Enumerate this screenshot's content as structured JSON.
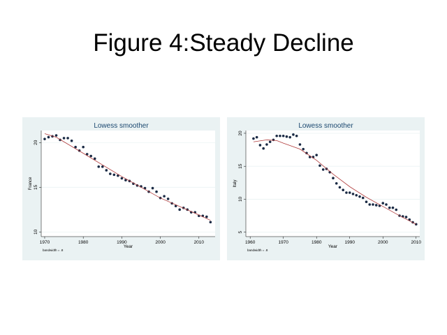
{
  "slide_title": "Figure 4:Steady Decline",
  "chart_data": [
    {
      "type": "scatter",
      "title": "Lowess smoother",
      "xlabel": "Year",
      "ylabel": "France",
      "note": "bandwidth = .8",
      "xlim": [
        1969.1,
        2014.2
      ],
      "ylim": [
        9.48,
        21.35
      ],
      "xticks": [
        1970,
        1980,
        1990,
        2000,
        2010
      ],
      "yticks": [
        10,
        15,
        20
      ],
      "grid": true,
      "marker_color": "#1a2a44",
      "line_color": "#b03a3a",
      "x": [
        1970,
        1971,
        1972,
        1973,
        1974,
        1975,
        1976,
        1977,
        1978,
        1979,
        1980,
        1981,
        1982,
        1983,
        1984,
        1985,
        1986,
        1987,
        1988,
        1989,
        1990,
        1991,
        1992,
        1993,
        1994,
        1995,
        1996,
        1997,
        1998,
        1999,
        2000,
        2001,
        2002,
        2003,
        2004,
        2005,
        2006,
        2007,
        2008,
        2009,
        2010,
        2011,
        2012,
        2013
      ],
      "y": [
        20.4,
        20.6,
        20.7,
        20.8,
        20.3,
        20.5,
        20.5,
        20.2,
        19.5,
        19.1,
        19.5,
        18.7,
        18.5,
        18.2,
        17.3,
        17.3,
        16.9,
        16.5,
        16.4,
        16.3,
        16.0,
        15.8,
        15.7,
        15.4,
        15.2,
        15.1,
        14.9,
        14.5,
        14.9,
        14.5,
        13.8,
        14.0,
        13.7,
        13.2,
        12.9,
        12.5,
        12.7,
        12.5,
        12.2,
        12.2,
        11.8,
        11.8,
        11.7,
        11.1
      ],
      "lowess": {
        "x": [
          1970,
          1973,
          1980,
          1990,
          2000,
          2010,
          2013
        ],
        "y": [
          21.0,
          20.6,
          18.8,
          16.2,
          13.8,
          11.9,
          11.3
        ]
      }
    },
    {
      "type": "scatter",
      "title": "Lowess smoother",
      "xlabel": "Year",
      "ylabel": "Italy",
      "note": "bandwidth = .8",
      "xlim": [
        1958.7,
        2011.1
      ],
      "ylim": [
        4.33,
        20.42
      ],
      "xticks": [
        1960,
        1970,
        1980,
        1990,
        2000,
        2010
      ],
      "yticks": [
        5,
        10,
        15,
        20
      ],
      "grid": true,
      "marker_color": "#1a2a44",
      "line_color": "#b03a3a",
      "x": [
        1961,
        1962,
        1963,
        1964,
        1965,
        1966,
        1967,
        1968,
        1969,
        1970,
        1971,
        1972,
        1973,
        1974,
        1975,
        1976,
        1977,
        1978,
        1979,
        1980,
        1981,
        1982,
        1983,
        1984,
        1985,
        1986,
        1987,
        1988,
        1989,
        1990,
        1991,
        1992,
        1993,
        1994,
        1995,
        1996,
        1997,
        1998,
        1999,
        2000,
        2001,
        2002,
        2003,
        2004,
        2005,
        2006,
        2007,
        2008,
        2009,
        2010
      ],
      "y": [
        19.2,
        19.4,
        18.2,
        17.7,
        18.3,
        18.7,
        19.0,
        19.6,
        19.6,
        19.6,
        19.5,
        19.4,
        19.8,
        19.6,
        18.3,
        17.6,
        17.0,
        16.4,
        16.4,
        16.7,
        15.1,
        14.5,
        14.6,
        14.1,
        13.2,
        12.4,
        11.8,
        11.4,
        11.0,
        11.0,
        10.8,
        10.6,
        10.4,
        10.2,
        9.6,
        9.2,
        9.2,
        9.1,
        9.0,
        9.4,
        9.2,
        8.7,
        8.7,
        8.4,
        7.5,
        7.4,
        7.3,
        6.9,
        6.5,
        6.2
      ],
      "lowess": {
        "x": [
          1961,
          1965,
          1968,
          1970,
          1975,
          1980,
          1985,
          1990,
          1995,
          2000,
          2005,
          2010
        ],
        "y": [
          18.7,
          19.0,
          18.9,
          18.5,
          17.6,
          15.9,
          13.8,
          11.9,
          10.3,
          8.9,
          7.5,
          6.2
        ]
      }
    }
  ]
}
